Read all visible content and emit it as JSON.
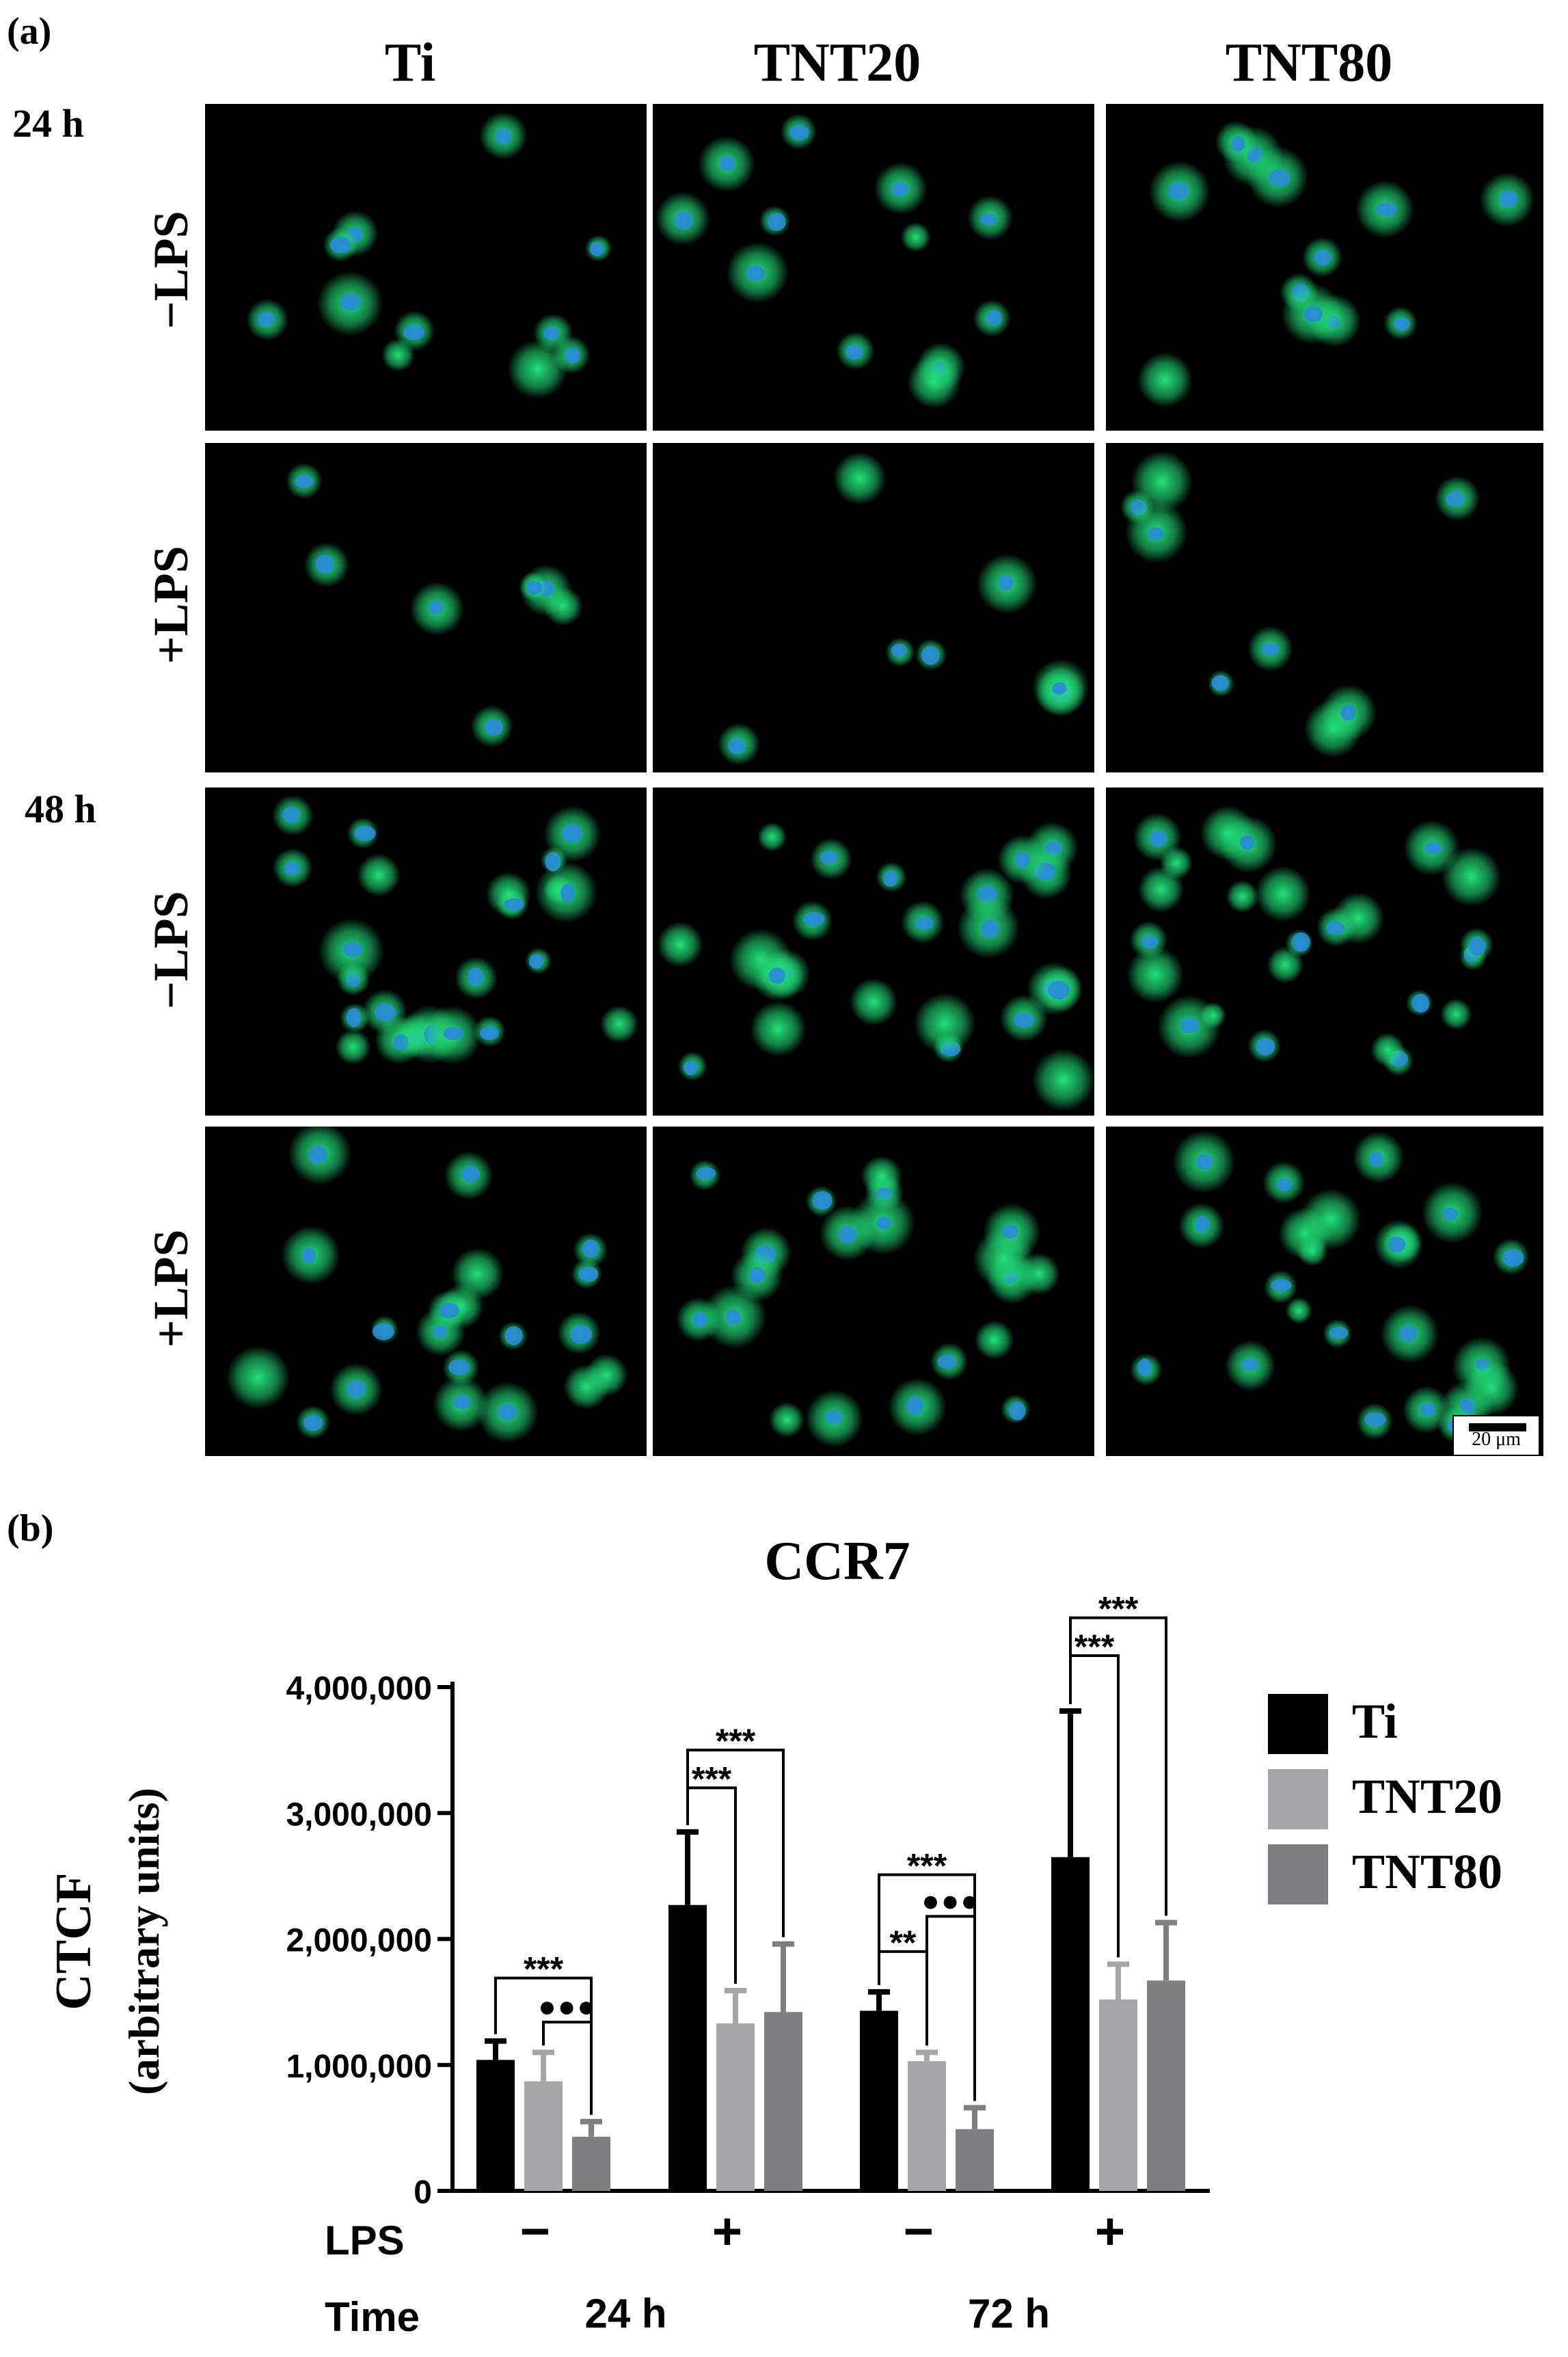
{
  "panel_a": {
    "label": "(a)",
    "columns": [
      "Ti",
      "TNT20",
      "TNT80"
    ],
    "timepoints": [
      "24 h",
      "48 h"
    ],
    "rows": [
      "−LPS",
      "+LPS",
      "−LPS",
      "+LPS"
    ],
    "scale_bar": "20 μm",
    "colors": {
      "cytoskeleton": "#22e07a",
      "nucleus": "#2a8ad8",
      "background": "#000000"
    }
  },
  "panel_b": {
    "label": "(b)"
  },
  "chart_data": {
    "type": "bar",
    "title": "CCR7",
    "ylabel_line1": "CTCF",
    "ylabel_line2": "(arbitrary units)",
    "ylim": [
      0,
      4000000
    ],
    "yticks": [
      0,
      1000000,
      2000000,
      3000000,
      4000000
    ],
    "ytick_labels": [
      "0",
      "1,000,000",
      "2,000,000",
      "3,000,000",
      "4,000,000"
    ],
    "groups": [
      {
        "lps": "−",
        "time": "24 h"
      },
      {
        "lps": "+",
        "time": ""
      },
      {
        "lps": "−",
        "time": "72 h"
      },
      {
        "lps": "+",
        "time": ""
      }
    ],
    "time_labels": [
      {
        "text": "24 h",
        "groups": [
          0,
          1
        ]
      },
      {
        "text": "72 h",
        "groups": [
          2,
          3
        ]
      }
    ],
    "row_labels": {
      "lps": "LPS",
      "time": "Time"
    },
    "series": [
      {
        "name": "Ti",
        "color": "#000000",
        "values": [
          1040000,
          2270000,
          1430000,
          2650000
        ],
        "errors": [
          150000,
          580000,
          150000,
          1160000
        ]
      },
      {
        "name": "TNT20",
        "color": "#a6a6a8",
        "values": [
          870000,
          1330000,
          1030000,
          1520000
        ],
        "errors": [
          230000,
          260000,
          70000,
          280000
        ]
      },
      {
        "name": "TNT80",
        "color": "#7f7f81",
        "values": [
          430000,
          1420000,
          490000,
          1670000
        ],
        "errors": [
          120000,
          540000,
          170000,
          460000
        ]
      }
    ],
    "legend_position": "right",
    "annotations": [
      {
        "group": 0,
        "from": 0,
        "to": 2,
        "label": "***",
        "y": 1690000,
        "style": "star"
      },
      {
        "group": 0,
        "from": 1,
        "to": 2,
        "label": "●●●",
        "y": 1340000,
        "style": "dot"
      },
      {
        "group": 1,
        "from": 0,
        "to": 1,
        "label": "***",
        "y": 3200000,
        "style": "star"
      },
      {
        "group": 1,
        "from": 0,
        "to": 2,
        "label": "***",
        "y": 3500000,
        "style": "star"
      },
      {
        "group": 2,
        "from": 0,
        "to": 1,
        "label": "**",
        "y": 1900000,
        "style": "star"
      },
      {
        "group": 2,
        "from": 0,
        "to": 2,
        "label": "***",
        "y": 2510000,
        "style": "star"
      },
      {
        "group": 2,
        "from": 1,
        "to": 2,
        "label": "●●●",
        "y": 2180000,
        "style": "dot"
      },
      {
        "group": 3,
        "from": 0,
        "to": 1,
        "label": "***",
        "y": 4250000,
        "style": "star"
      },
      {
        "group": 3,
        "from": 0,
        "to": 2,
        "label": "***",
        "y": 4550000,
        "style": "star"
      }
    ]
  }
}
